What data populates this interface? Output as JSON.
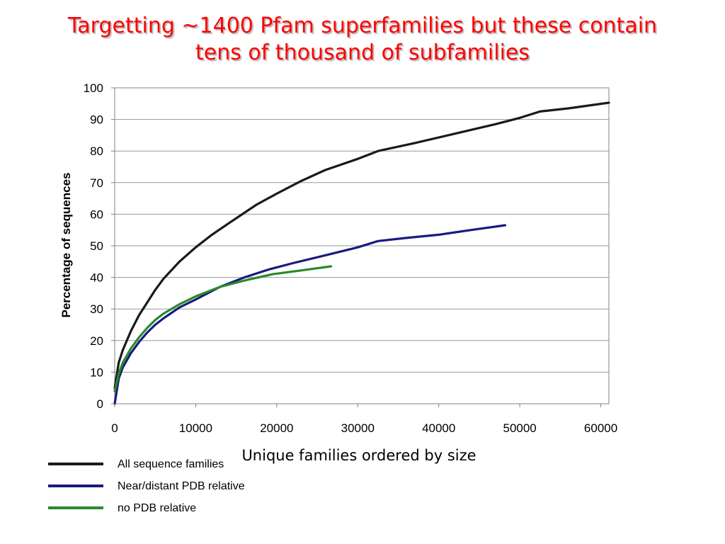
{
  "slide": {
    "title_line1": "Targetting ~1400 Pfam superfamilies but these contain",
    "title_line2": "tens of thousand of subfamilies"
  },
  "chart_data": {
    "type": "line",
    "title": "",
    "xlabel": "Unique families ordered by size",
    "ylabel": "Percentage of sequences",
    "xlim": [
      0,
      61000
    ],
    "ylim": [
      0,
      100
    ],
    "x_ticks": [
      0,
      10000,
      20000,
      30000,
      40000,
      50000,
      60000
    ],
    "y_ticks": [
      0,
      10,
      20,
      30,
      40,
      50,
      60,
      70,
      80,
      90,
      100
    ],
    "grid": "horizontal",
    "legend_position": "bottom-left",
    "series": [
      {
        "name": "All sequence families",
        "color": "#1a1a1a",
        "points": [
          [
            0,
            5
          ],
          [
            500,
            13
          ],
          [
            1000,
            17
          ],
          [
            2000,
            23
          ],
          [
            3000,
            28
          ],
          [
            4000,
            32
          ],
          [
            5000,
            36
          ],
          [
            6000,
            39.5
          ],
          [
            8000,
            45
          ],
          [
            10000,
            49.5
          ],
          [
            12000,
            53.5
          ],
          [
            14000,
            57
          ],
          [
            17500,
            63
          ],
          [
            20000,
            66.5
          ],
          [
            23000,
            70.5
          ],
          [
            26000,
            74
          ],
          [
            30000,
            77.5
          ],
          [
            32500,
            80
          ],
          [
            37000,
            82.5
          ],
          [
            42000,
            85.5
          ],
          [
            47000,
            88.5
          ],
          [
            50000,
            90.5
          ],
          [
            52500,
            92.5
          ],
          [
            56000,
            93.5
          ],
          [
            61000,
            95.3
          ]
        ]
      },
      {
        "name": "Near/distant PDB relative",
        "color": "#1a1a80",
        "points": [
          [
            0,
            0
          ],
          [
            500,
            8
          ],
          [
            1000,
            11.5
          ],
          [
            2000,
            16
          ],
          [
            3000,
            19.5
          ],
          [
            4000,
            22.5
          ],
          [
            5000,
            25
          ],
          [
            6000,
            27
          ],
          [
            8000,
            30.5
          ],
          [
            10000,
            33
          ],
          [
            13000,
            37
          ],
          [
            16000,
            40
          ],
          [
            19000,
            42.5
          ],
          [
            22000,
            44.5
          ],
          [
            26000,
            47
          ],
          [
            30000,
            49.5
          ],
          [
            32500,
            51.5
          ],
          [
            36000,
            52.5
          ],
          [
            40000,
            53.5
          ],
          [
            44000,
            55
          ],
          [
            48200,
            56.5
          ]
        ]
      },
      {
        "name": "no PDB relative",
        "color": "#2a8a2a",
        "points": [
          [
            0,
            4
          ],
          [
            500,
            9.5
          ],
          [
            1000,
            13
          ],
          [
            2000,
            17.5
          ],
          [
            3000,
            21
          ],
          [
            4000,
            24
          ],
          [
            5000,
            26.5
          ],
          [
            6000,
            28.5
          ],
          [
            8000,
            31.5
          ],
          [
            10000,
            34
          ],
          [
            13000,
            37
          ],
          [
            16000,
            39
          ],
          [
            19500,
            41
          ],
          [
            23000,
            42.2
          ],
          [
            26700,
            43.5
          ]
        ]
      }
    ]
  }
}
